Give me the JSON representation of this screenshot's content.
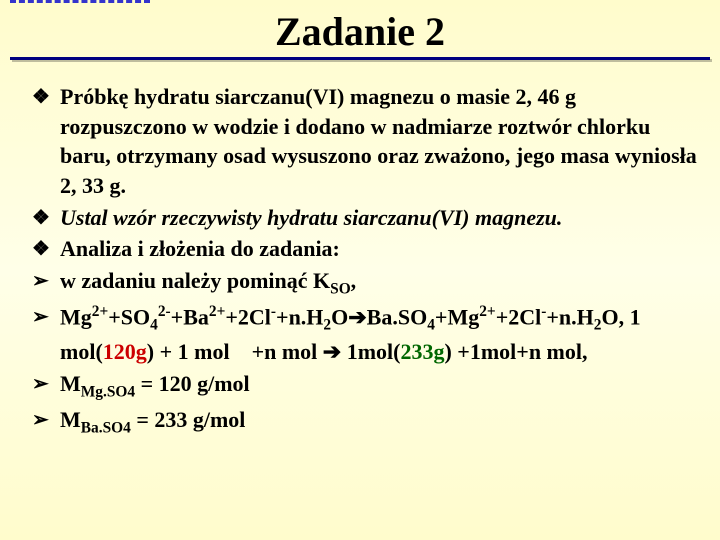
{
  "title": "Zadanie 2",
  "bullets": {
    "diamond": "❖",
    "arrow": "➢"
  },
  "colors": {
    "background_gradient_top": "#fffccc",
    "background_gradient_mid": "#ffffe8",
    "frame": "#000080",
    "red": "#cc0000",
    "green": "#006600",
    "text": "#000000"
  },
  "items": [
    {
      "bullet": "diamond",
      "html": "Próbkę hydratu siarczanu(VI) magnezu o masie 2, 46 g rozpuszczono w wodzie i dodano w nadmiarze roztwór chlorku baru, otrzymany osad wysuszono oraz zważono, jego masa wyniosła 2, 33 g."
    },
    {
      "bullet": "diamond",
      "html": " <span class=\"italic\">Ustal wzór rzeczywisty hydratu siarczanu(VI) magnezu.</span>"
    },
    {
      "bullet": "diamond",
      "html": "Analiza i złożenia do zadania:"
    },
    {
      "bullet": "arrow",
      "html": "w zadaniu należy pominąć K<sub>SO</sub>,"
    },
    {
      "bullet": "arrow",
      "html": "Mg<sup>2+</sup>+SO<sub>4</sub><sup>2-</sup>+Ba<sup>2+</sup>+2Cl<sup>-</sup>+n.H<sub>2</sub>O➔Ba.SO<sub>4</sub>+Mg<sup>2+</sup>+2Cl<sup>-</sup>+n.H<sub>2</sub>O, 1 mol(<span class=\"g120\">120g</span>) + 1 mol&nbsp;&nbsp;&nbsp;&nbsp;+n mol ➔ 1mol(<span class=\"g233\">233g</span>) +1mol+n mol,"
    },
    {
      "bullet": "arrow",
      "html": "M<sub>Mg.SO4</sub> = 120 g/mol"
    },
    {
      "bullet": "arrow",
      "html": "M<sub>Ba.SO4</sub> = 233 g/mol"
    }
  ]
}
